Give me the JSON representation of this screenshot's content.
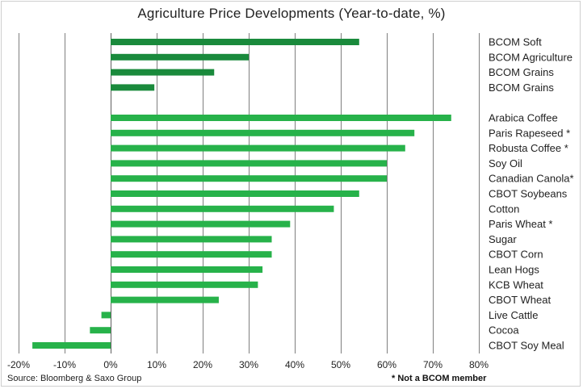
{
  "chart_data": {
    "type": "bar",
    "orientation": "horizontal",
    "title": "Agriculture Price Developments (Year-to-date, %)",
    "xlabel": "",
    "ylabel": "",
    "xlim": [
      -20,
      80
    ],
    "x_ticks": [
      "-20%",
      "-10%",
      "0%",
      "10%",
      "20%",
      "30%",
      "40%",
      "50%",
      "60%",
      "70%",
      "80%"
    ],
    "grid": "vertical",
    "categories": [
      "BCOM Soft",
      "BCOM Agriculture",
      "BCOM Grains",
      "BCOM Grains",
      "Arabica Coffee",
      "Paris Rapeseed *",
      "Robusta Coffee *",
      "Soy Oil",
      "Canadian Canola*",
      "CBOT Soybeans",
      "Cotton",
      "Paris Wheat *",
      "Sugar",
      "CBOT Corn",
      "Lean Hogs",
      "KCB Wheat",
      "CBOT Wheat",
      "Live Cattle",
      "Cocoa",
      "CBOT Soy Meal"
    ],
    "values": [
      54,
      30,
      22.5,
      9.5,
      74,
      66,
      64,
      60,
      60,
      54,
      48.5,
      39,
      35,
      35,
      33,
      32,
      23.5,
      -2,
      -4.5,
      -17
    ],
    "groups": [
      0,
      0,
      0,
      0,
      1,
      1,
      1,
      1,
      1,
      1,
      1,
      1,
      1,
      1,
      1,
      1,
      1,
      1,
      1,
      1
    ],
    "colors": {
      "index": "#1a8a3c",
      "commodity": "#27b24a",
      "grid": "#7f7f7f"
    }
  },
  "source": "Source: Bloomberg & Saxo Group",
  "footnote": "* Not a BCOM member"
}
